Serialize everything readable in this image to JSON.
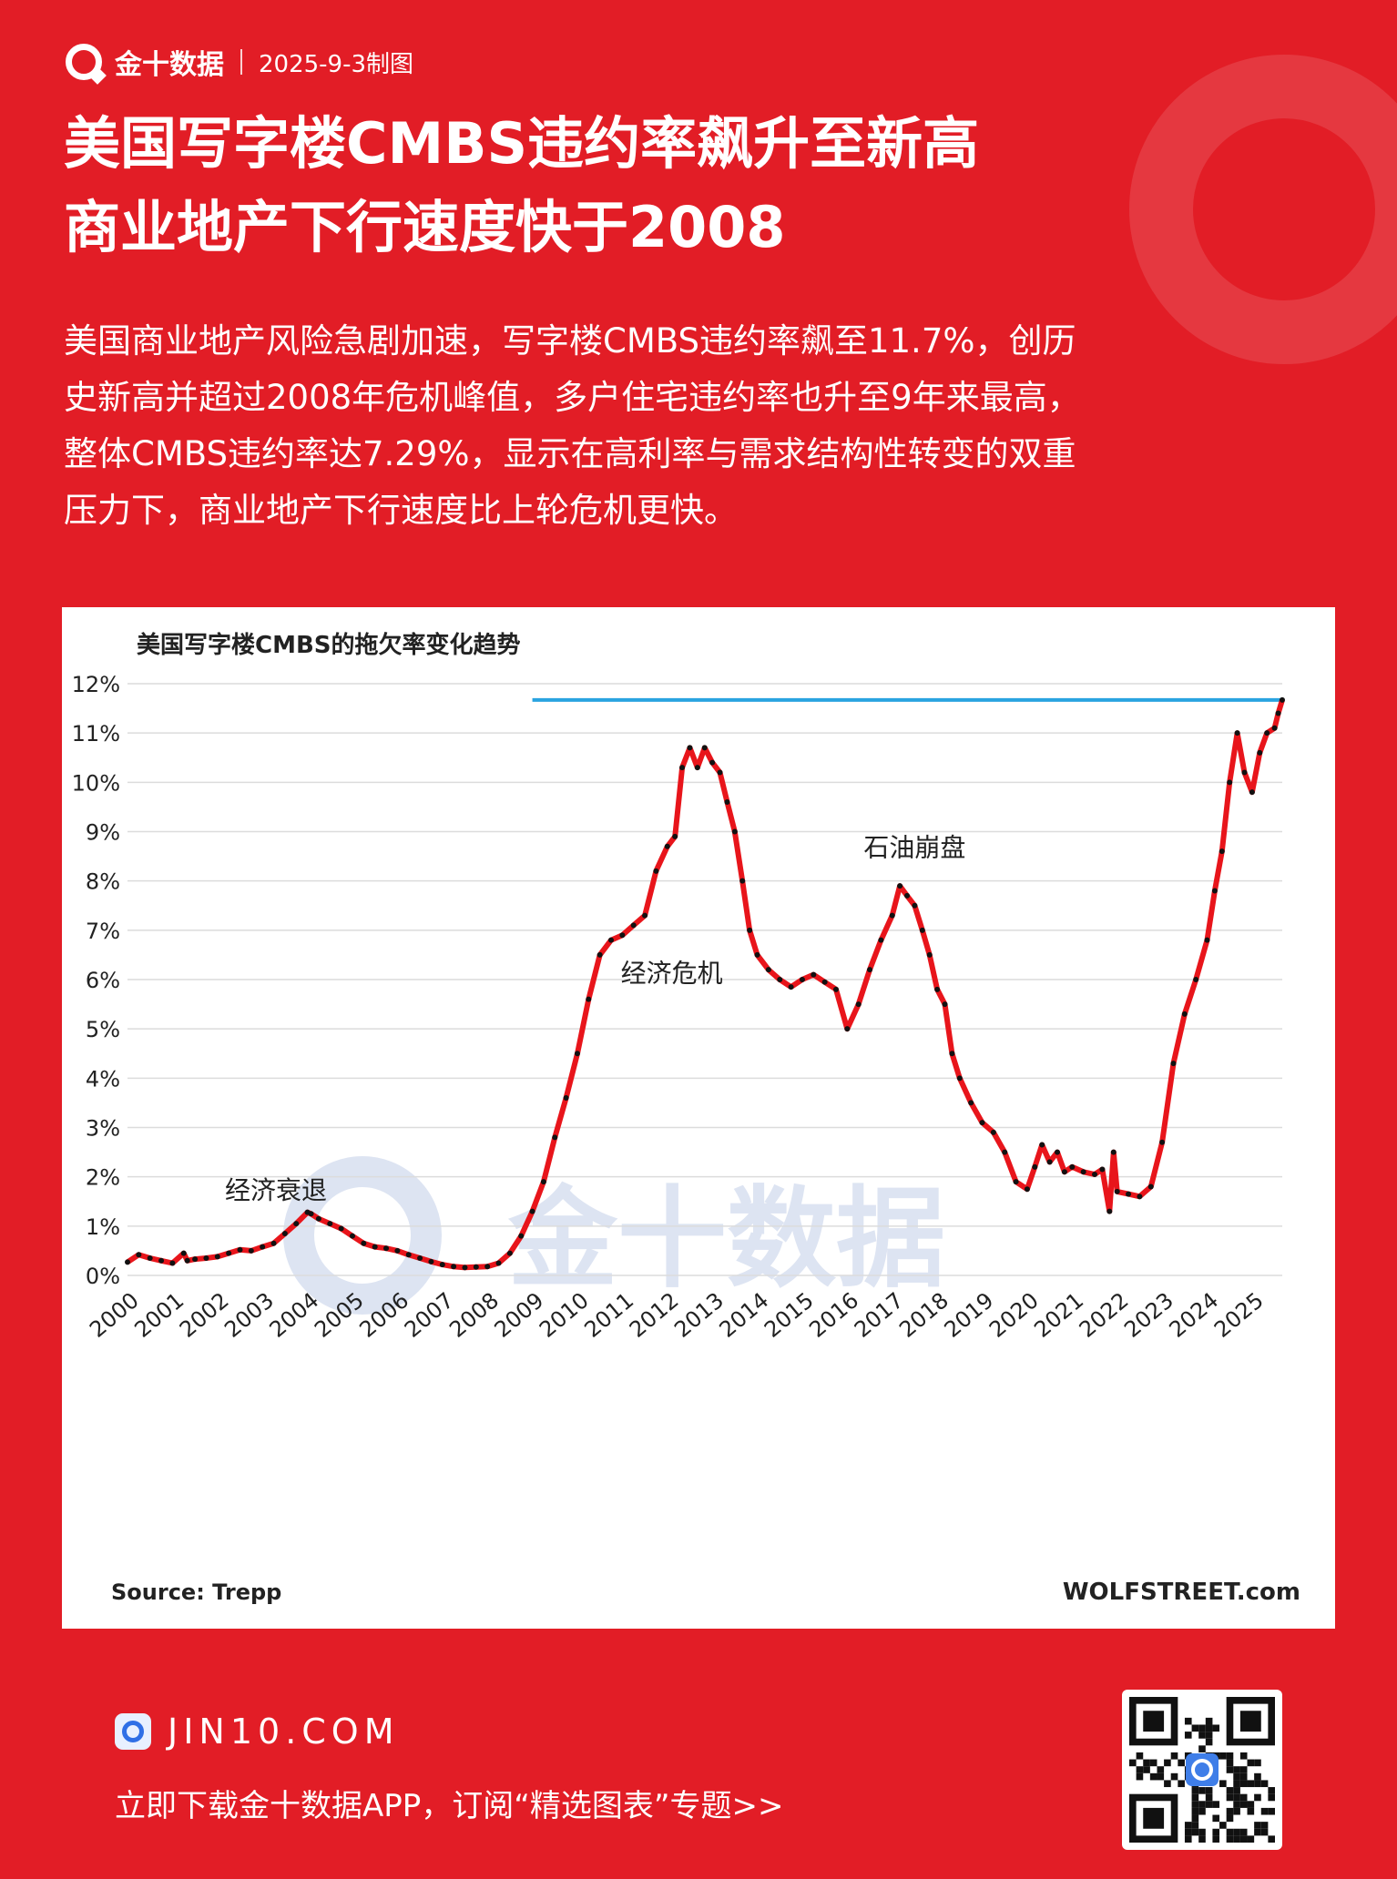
{
  "header": {
    "brand": "金十数据",
    "date": "2025-9-3制图"
  },
  "title": {
    "line1": "美国写字楼CMBS违约率飙升至新高",
    "line2": "商业地产下行速度快于2008"
  },
  "summary": {
    "lines": [
      "美国商业地产风险急剧加速，写字楼CMBS违约率飙至11.7%，创历",
      "史新高并超过2008年危机峰值，多户住宅违约率也升至9年来最高，",
      "整体CMBS违约率达7.29%，显示在高利率与需求结构性转变的双重",
      "压力下，商业地产下行速度比上轮危机更快。"
    ]
  },
  "footer": {
    "site": "JIN10.COM",
    "cta": "立即下载金十数据APP，订阅“精选图表”专题>>"
  },
  "colors": {
    "background": "#e21d26",
    "line": "#e8151b",
    "marker": "#111111",
    "reference": "#29a3e0",
    "watermark": "#d9e1f2"
  },
  "chart_data": {
    "type": "line",
    "title": "美国写字楼CMBS的拖欠率变化趋势",
    "xlabel": "",
    "ylabel": "",
    "xlim": [
      2000,
      2025.67
    ],
    "ylim": [
      0,
      12
    ],
    "x_ticks": [
      "2000",
      "2001",
      "2002",
      "2003",
      "2004",
      "2005",
      "2006",
      "2007",
      "2008",
      "2009",
      "2010",
      "2011",
      "2012",
      "2013",
      "2014",
      "2015",
      "2016",
      "2017",
      "2018",
      "2019",
      "2020",
      "2021",
      "2022",
      "2023",
      "2024",
      "2025"
    ],
    "y_ticks": [
      "0%",
      "1%",
      "2%",
      "3%",
      "4%",
      "5%",
      "6%",
      "7%",
      "8%",
      "9%",
      "10%",
      "11%",
      "12%"
    ],
    "grid": true,
    "source": "Source: Trepp",
    "credit": "WOLFSTREET.com",
    "watermark": "金十数据",
    "reference_line": {
      "y": 11.67,
      "x_start": 2009.0,
      "x_end": 2025.67
    },
    "annotations": [
      {
        "text": "经济衰退",
        "x": 2003.3,
        "y": 1.55
      },
      {
        "text": "经济危机",
        "x": 2012.1,
        "y": 5.95
      },
      {
        "text": "石油崩盘",
        "x": 2017.5,
        "y": 8.5
      }
    ],
    "series": [
      {
        "x": [
          2000.0,
          2000.25,
          2000.5,
          2000.75,
          2001.0,
          2001.25,
          2001.33,
          2001.5,
          2001.75,
          2002.0,
          2002.25,
          2002.5,
          2002.75,
          2003.0,
          2003.25,
          2003.5,
          2003.75,
          2004.0,
          2004.08,
          2004.25,
          2004.5,
          2004.75,
          2005.0,
          2005.25,
          2005.5,
          2005.75,
          2006.0,
          2006.25,
          2006.5,
          2006.75,
          2007.0,
          2007.25,
          2007.5,
          2007.75,
          2008.0,
          2008.25,
          2008.5,
          2008.75,
          2009.0,
          2009.25,
          2009.5,
          2009.75,
          2010.0,
          2010.25,
          2010.5,
          2010.75,
          2011.0,
          2011.25,
          2011.5,
          2011.75,
          2012.0,
          2012.17,
          2012.33,
          2012.5,
          2012.67,
          2012.83,
          2013.0,
          2013.17,
          2013.33,
          2013.5,
          2013.67,
          2013.83,
          2014.0,
          2014.25,
          2014.5,
          2014.75,
          2015.0,
          2015.25,
          2015.5,
          2015.75,
          2016.0,
          2016.25,
          2016.5,
          2016.75,
          2017.0,
          2017.17,
          2017.33,
          2017.5,
          2017.67,
          2017.83,
          2018.0,
          2018.17,
          2018.33,
          2018.5,
          2018.75,
          2019.0,
          2019.25,
          2019.5,
          2019.75,
          2020.0,
          2020.17,
          2020.33,
          2020.5,
          2020.67,
          2020.83,
          2021.0,
          2021.25,
          2021.5,
          2021.67,
          2021.83,
          2021.92,
          2022.0,
          2022.25,
          2022.5,
          2022.75,
          2023.0,
          2023.25,
          2023.5,
          2023.75,
          2024.0,
          2024.17,
          2024.33,
          2024.5,
          2024.67,
          2024.83,
          2025.0,
          2025.17,
          2025.33,
          2025.5,
          2025.58,
          2025.67
        ],
        "values": [
          0.27,
          0.42,
          0.35,
          0.3,
          0.25,
          0.45,
          0.3,
          0.33,
          0.35,
          0.38,
          0.45,
          0.52,
          0.5,
          0.58,
          0.65,
          0.85,
          1.05,
          1.28,
          1.25,
          1.15,
          1.05,
          0.95,
          0.8,
          0.65,
          0.58,
          0.55,
          0.5,
          0.42,
          0.35,
          0.28,
          0.22,
          0.18,
          0.16,
          0.17,
          0.18,
          0.25,
          0.45,
          0.8,
          1.3,
          1.9,
          2.8,
          3.6,
          4.5,
          5.6,
          6.5,
          6.8,
          6.9,
          7.1,
          7.3,
          8.2,
          8.7,
          8.9,
          10.3,
          10.7,
          10.3,
          10.7,
          10.4,
          10.2,
          9.6,
          9.0,
          8.0,
          7.0,
          6.5,
          6.2,
          6.0,
          5.85,
          6.0,
          6.1,
          5.95,
          5.8,
          5.0,
          5.5,
          6.2,
          6.8,
          7.3,
          7.9,
          7.7,
          7.5,
          7.0,
          6.5,
          5.8,
          5.5,
          4.5,
          4.0,
          3.5,
          3.1,
          2.9,
          2.5,
          1.9,
          1.75,
          2.2,
          2.65,
          2.3,
          2.5,
          2.1,
          2.2,
          2.1,
          2.05,
          2.15,
          1.3,
          2.5,
          1.7,
          1.65,
          1.6,
          1.8,
          2.7,
          4.3,
          5.3,
          6.0,
          6.8,
          7.8,
          8.6,
          10.0,
          11.0,
          10.2,
          9.8,
          10.6,
          11.0,
          11.1,
          11.4,
          11.67
        ]
      }
    ]
  }
}
